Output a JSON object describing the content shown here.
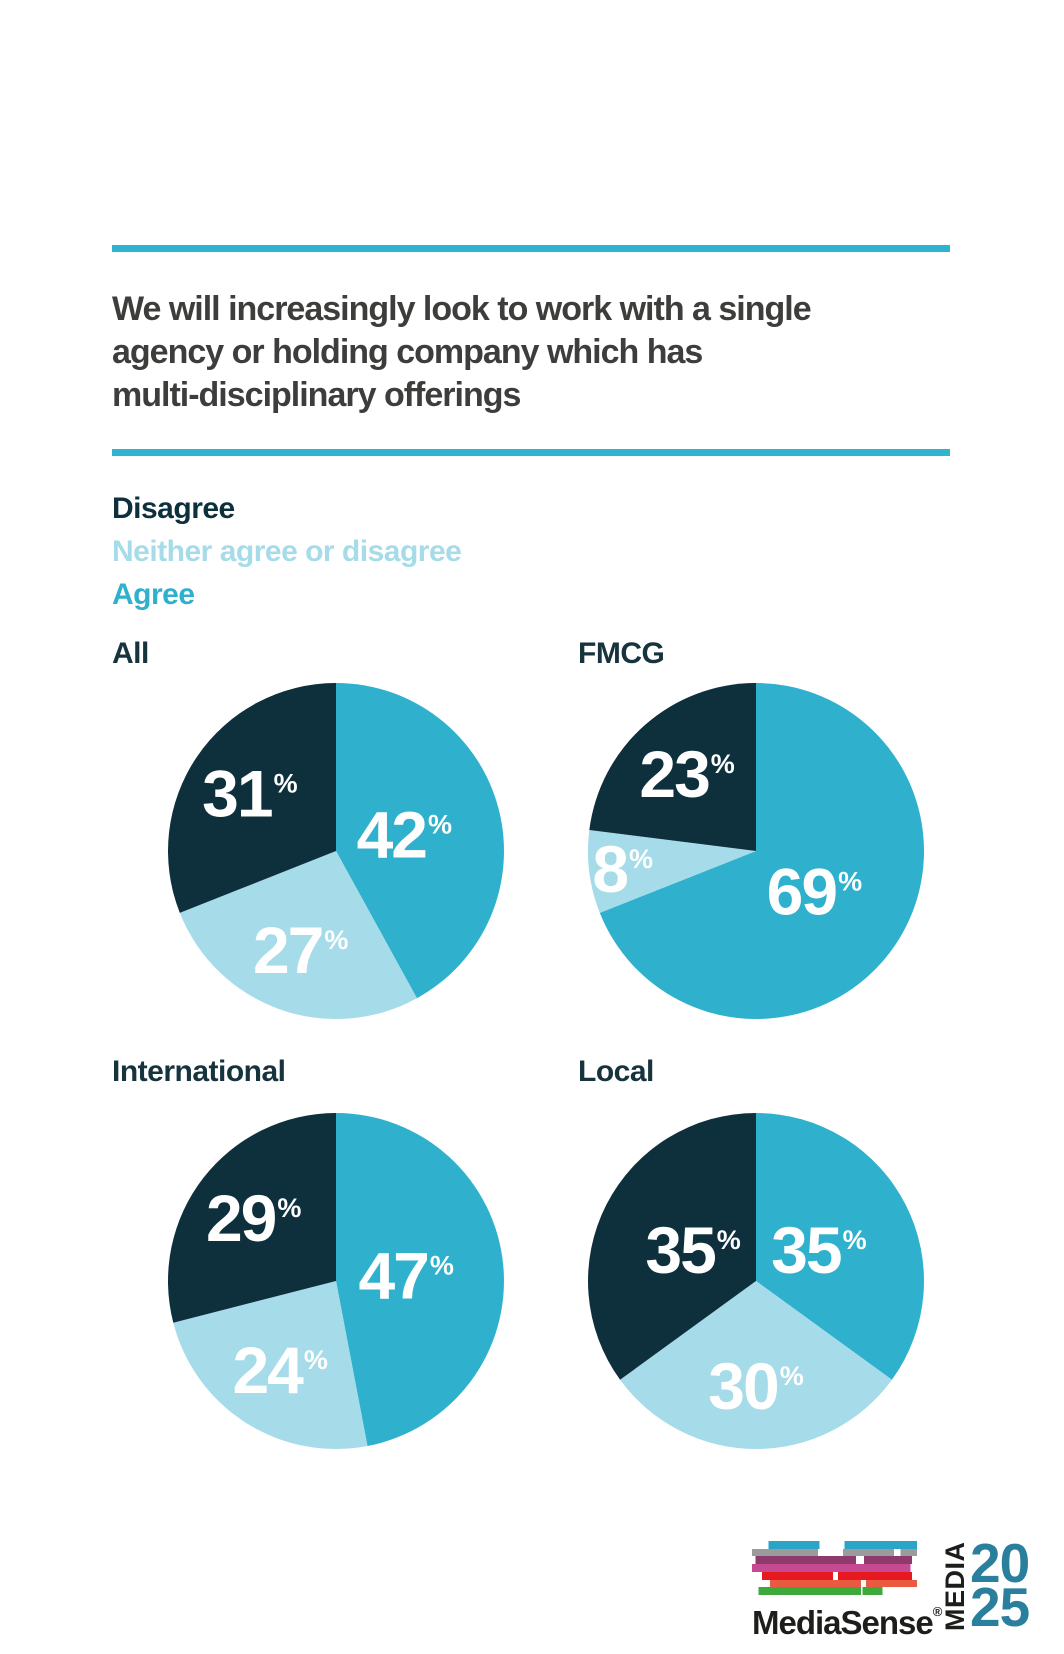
{
  "header": {
    "title_full": "We will increasingly look to work with a single agency or holding company which has multi-disciplinary offerings",
    "title_lines": [
      "We will increasingly look to work with a single",
      "agency or holding company which has",
      "multi-disciplinary offerings"
    ]
  },
  "legend": {
    "items": [
      {
        "label": "Disagree",
        "color": "#0e2f3c"
      },
      {
        "label": "Neither agree or disagree",
        "color": "#a6dbe9"
      },
      {
        "label": "Agree",
        "color": "#2fb1ce"
      }
    ]
  },
  "chart_data": {
    "type": "pie",
    "value_suffix": "%",
    "start_angle_deg": 0,
    "direction": "clockwise",
    "legend_position": "top-left",
    "slice_colors": {
      "Agree": "#2fb1ce",
      "Neither agree or disagree": "#a6dbe9",
      "Disagree": "#0e2f3c"
    },
    "charts": [
      {
        "title": "All",
        "slices": [
          {
            "label": "Agree",
            "value": 42
          },
          {
            "label": "Neither agree or disagree",
            "value": 27
          },
          {
            "label": "Disagree",
            "value": 31
          }
        ]
      },
      {
        "title": "FMCG",
        "slices": [
          {
            "label": "Agree",
            "value": 69
          },
          {
            "label": "Neither agree or disagree",
            "value": 8
          },
          {
            "label": "Disagree",
            "value": 23
          }
        ]
      },
      {
        "title": "International",
        "slices": [
          {
            "label": "Agree",
            "value": 47
          },
          {
            "label": "Neither agree or disagree",
            "value": 24
          },
          {
            "label": "Disagree",
            "value": 29
          }
        ]
      },
      {
        "title": "Local",
        "slices": [
          {
            "label": "Agree",
            "value": 35
          },
          {
            "label": "Neither agree or disagree",
            "value": 30
          },
          {
            "label": "Disagree",
            "value": 35
          }
        ]
      }
    ]
  },
  "footer": {
    "brand": "MediaSense",
    "registered_mark": "®",
    "media_label": "MEDIA",
    "year_top": "20",
    "year_bottom": "25",
    "year_color": "#2a7f9d",
    "stripe_colors": [
      "#2ca4c5",
      "#9c9b9b",
      "#8e3a6d",
      "#c54a92",
      "#e5191f",
      "#ea5a41",
      "#3ea83b"
    ]
  },
  "colors": {
    "rule": "#2eb3d0",
    "title_text": "#3d3d3c",
    "heading": "#16333e"
  }
}
